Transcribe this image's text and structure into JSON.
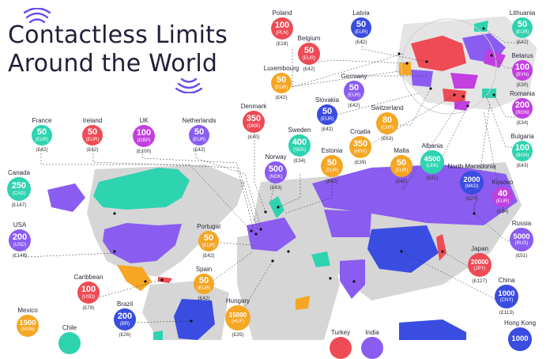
{
  "title": {
    "line1": "Contactless Limits",
    "line2": "Around the World"
  },
  "colors": {
    "blue": "#3a4de0",
    "purple": "#8a5cf0",
    "orange": "#f5a623",
    "teal": "#2ed3b0",
    "magenta": "#c23fe0",
    "red": "#ee4b55",
    "gray": "#d6d6d6"
  },
  "icons": [
    "contactless-icon"
  ],
  "countries": [
    {
      "id": "canada",
      "name": "Canada",
      "amount": "250",
      "currency": "(CAD)",
      "gbp": "(£147)",
      "color": "teal"
    },
    {
      "id": "france",
      "name": "France",
      "amount": "50",
      "currency": "(EUR)",
      "gbp": "(£42)",
      "color": "teal"
    },
    {
      "id": "ireland",
      "name": "Ireland",
      "amount": "50",
      "currency": "(EUR)",
      "gbp": "(£42)",
      "color": "red"
    },
    {
      "id": "uk",
      "name": "UK",
      "amount": "100",
      "currency": "(GBP)",
      "gbp": "(£100)",
      "color": "magenta"
    },
    {
      "id": "netherlands",
      "name": "Netherlands",
      "amount": "50",
      "currency": "(EUR)",
      "gbp": "(£42)",
      "color": "purple"
    },
    {
      "id": "poland",
      "name": "Poland",
      "amount": "100",
      "currency": "(PLN)",
      "gbp": "(£18)",
      "color": "red"
    },
    {
      "id": "belgium",
      "name": "Belgium",
      "amount": "50",
      "currency": "(EUR)",
      "gbp": "(£42)",
      "color": "red"
    },
    {
      "id": "luxembourg",
      "name": "Luxembourg",
      "amount": "50",
      "currency": "(EUR)",
      "gbp": "(£42)",
      "color": "orange"
    },
    {
      "id": "denmark",
      "name": "Denmark",
      "amount": "350",
      "currency": "(DKK)",
      "gbp": "(£40)",
      "color": "red"
    },
    {
      "id": "latvia",
      "name": "Latvia",
      "amount": "50",
      "currency": "(EUR)",
      "gbp": "(£42)",
      "color": "blue"
    },
    {
      "id": "lithuania",
      "name": "Lithuania",
      "amount": "50",
      "currency": "(EUR)",
      "gbp": "(£42)",
      "color": "teal"
    },
    {
      "id": "belarus",
      "name": "Belarus",
      "amount": "100",
      "currency": "(BYN)",
      "gbp": "(£30)",
      "color": "magenta"
    },
    {
      "id": "romania",
      "name": "Romania",
      "amount": "200",
      "currency": "(RON)",
      "gbp": "(£34)",
      "color": "magenta"
    },
    {
      "id": "bulgaria",
      "name": "Bulgaria",
      "amount": "100",
      "currency": "(BGN)",
      "gbp": "(£43)",
      "color": "teal"
    },
    {
      "id": "germany",
      "name": "Germany",
      "amount": "50",
      "currency": "(EUR)",
      "gbp": "(£42)",
      "color": "purple"
    },
    {
      "id": "slovakia",
      "name": "Slovakia",
      "amount": "50",
      "currency": "(EUR)",
      "gbp": "(£42)",
      "color": "blue"
    },
    {
      "id": "switzerland",
      "name": "Switzerland",
      "amount": "80",
      "currency": "(CHF)",
      "gbp": "(£63)",
      "color": "orange"
    },
    {
      "id": "croatia",
      "name": "Croatia",
      "amount": "350",
      "currency": "(HRK)",
      "gbp": "(£39)",
      "color": "orange"
    },
    {
      "id": "sweden",
      "name": "Sweden",
      "amount": "400",
      "currency": "(SEK)",
      "gbp": "(£34)",
      "color": "teal"
    },
    {
      "id": "norway",
      "name": "Norway",
      "amount": "500",
      "currency": "(NOK)",
      "gbp": "(£43)",
      "color": "purple"
    },
    {
      "id": "estonia",
      "name": "Estonia",
      "amount": "50",
      "currency": "(EUR)",
      "gbp": "(£42)",
      "color": "orange"
    },
    {
      "id": "malta",
      "name": "Malta",
      "amount": "50",
      "currency": "(EUR)",
      "gbp": "(£42)",
      "color": "orange"
    },
    {
      "id": "albania",
      "name": "Albania",
      "amount": "4500",
      "currency": "(LEK)",
      "gbp": "(£31)",
      "color": "teal"
    },
    {
      "id": "north-macedonia",
      "name": "North Macedonia",
      "amount": "2000",
      "currency": "(MKD)",
      "gbp": "(£27)",
      "color": "blue"
    },
    {
      "id": "kosovo",
      "name": "Kosovo",
      "amount": "40",
      "currency": "(EUR)",
      "gbp": "(£34)",
      "color": "magenta"
    },
    {
      "id": "russia",
      "name": "Russia",
      "amount": "5000",
      "currency": "(RUS)",
      "gbp": "(£51)",
      "color": "purple"
    },
    {
      "id": "japan",
      "name": "Japan",
      "amount": "20000",
      "currency": "(JPY)",
      "gbp": "(£127)",
      "color": "red"
    },
    {
      "id": "china",
      "name": "China",
      "amount": "1000",
      "currency": "(CNY)",
      "gbp": "(£113)",
      "color": "blue"
    },
    {
      "id": "hong-kong",
      "name": "Hong Kong",
      "amount": "1000",
      "currency": "",
      "gbp": "",
      "color": "blue"
    },
    {
      "id": "portugal",
      "name": "Portugal",
      "amount": "50",
      "currency": "(EUR)",
      "gbp": "(£42)",
      "color": "orange"
    },
    {
      "id": "spain",
      "name": "Spain",
      "amount": "50",
      "currency": "(EUR)",
      "gbp": "(£42)",
      "color": "orange"
    },
    {
      "id": "usa",
      "name": "USA",
      "amount": "200",
      "currency": "(USD)",
      "gbp": "(£146)",
      "color": "purple"
    },
    {
      "id": "caribbean",
      "name": "Caribbean",
      "amount": "100",
      "currency": "(USD)",
      "gbp": "(£78)",
      "color": "red"
    },
    {
      "id": "brazil",
      "name": "Brazil",
      "amount": "200",
      "currency": "(BR)",
      "gbp": "(£26)",
      "color": "blue"
    },
    {
      "id": "hungary",
      "name": "Hungary",
      "amount": "15000",
      "currency": "(HUF)",
      "gbp": "(£35)",
      "color": "orange"
    },
    {
      "id": "mexico",
      "name": "Mexico",
      "amount": "1500",
      "currency": "(MXN)",
      "gbp": "",
      "color": "orange"
    },
    {
      "id": "chile",
      "name": "Chile",
      "amount": "",
      "currency": "",
      "gbp": "",
      "color": "teal"
    },
    {
      "id": "turkey",
      "name": "Turkey",
      "amount": "",
      "currency": "",
      "gbp": "",
      "color": "red"
    },
    {
      "id": "india",
      "name": "India",
      "amount": "",
      "currency": "",
      "gbp": "",
      "color": "purple"
    }
  ]
}
